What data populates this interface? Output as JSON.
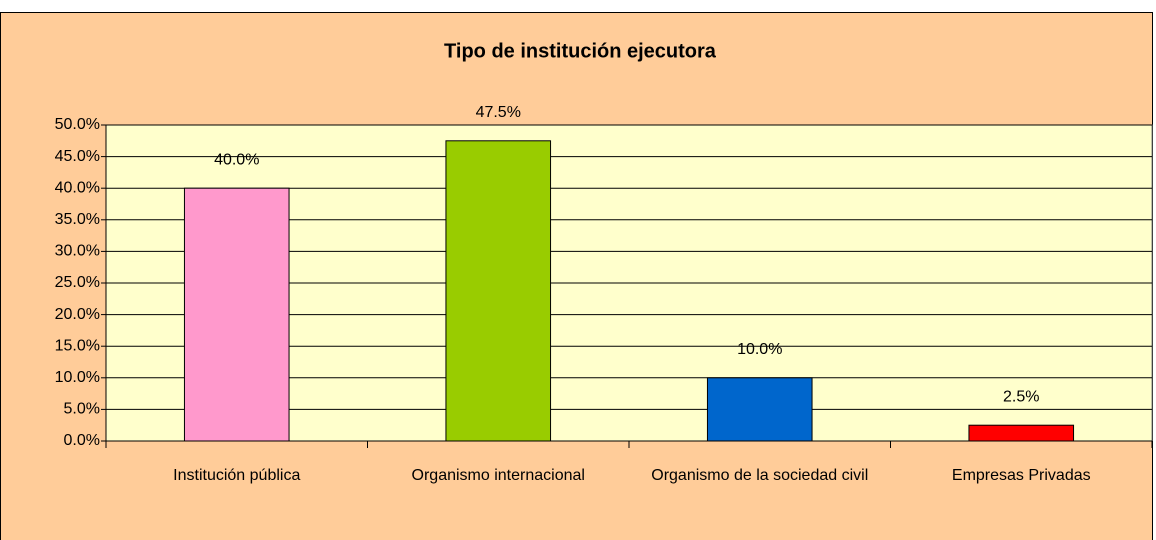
{
  "chart_data": {
    "type": "bar",
    "title": "Tipo de institución ejecutora",
    "categories": [
      "Institución pública",
      "Organismo internacional",
      "Organismo de la sociedad civil",
      "Empresas Privadas"
    ],
    "values": [
      40.0,
      47.5,
      10.0,
      2.5
    ],
    "value_labels": [
      "40.0%",
      "47.5%",
      "10.0%",
      "2.5%"
    ],
    "colors": [
      "#ff99cc",
      "#99cc00",
      "#0066cc",
      "#ff0000"
    ],
    "ylim": [
      0,
      50
    ],
    "yticks": [
      {
        "value": 0,
        "label": "0.0%"
      },
      {
        "value": 5,
        "label": "5.0%"
      },
      {
        "value": 10,
        "label": "10.0%"
      },
      {
        "value": 15,
        "label": "15.0%"
      },
      {
        "value": 20,
        "label": "20.0%"
      },
      {
        "value": 25,
        "label": "25.0%"
      },
      {
        "value": 30,
        "label": "30.0%"
      },
      {
        "value": 35,
        "label": "35.0%"
      },
      {
        "value": 40,
        "label": "40.0%"
      },
      {
        "value": 45,
        "label": "45.0%"
      },
      {
        "value": 50,
        "label": "50.0%"
      }
    ],
    "grid": true
  }
}
